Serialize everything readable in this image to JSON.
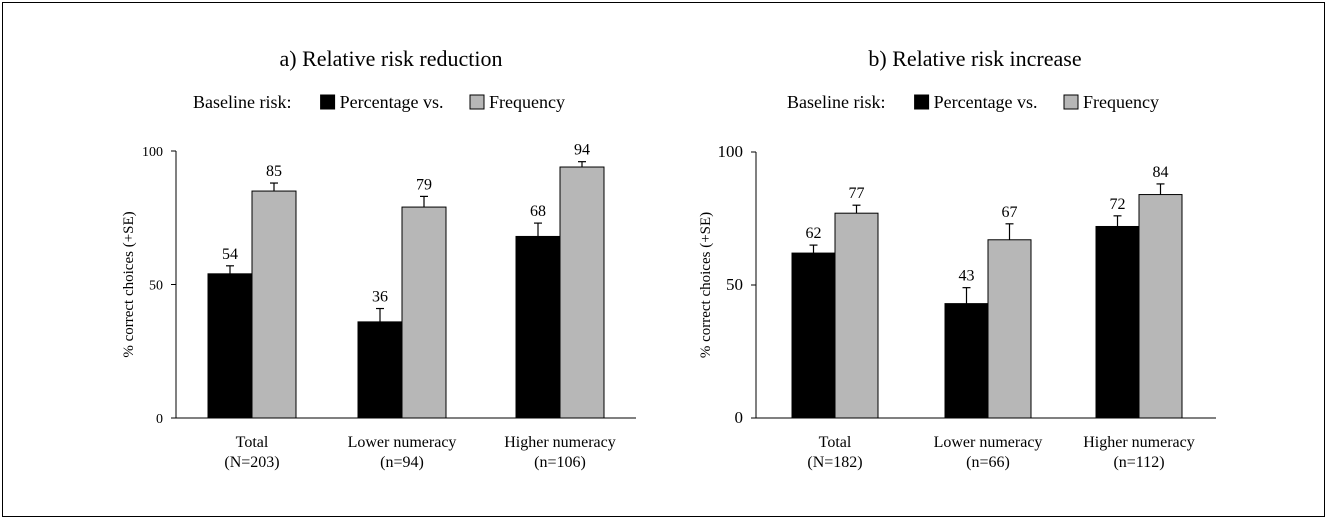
{
  "colors": {
    "percentage": "#000000",
    "frequency": "#b7b7b7",
    "axis": "#000000"
  },
  "chart_data": [
    {
      "type": "bar",
      "title": "a) Relative risk reduction",
      "legend_prefix": "Baseline risk:",
      "legend_placement": "top-center",
      "ylabel": "% correct choices (+SE)",
      "ylim": [
        0,
        100
      ],
      "yticks": [
        "0",
        "50",
        "100"
      ],
      "categories": [
        "Total",
        "Lower numeracy",
        "Higher numeracy"
      ],
      "category_sublabels": [
        "(N=203)",
        "(n=94)",
        "(n=106)"
      ],
      "series": [
        {
          "name": "Percentage vs.",
          "values": [
            54,
            36,
            68
          ],
          "se": [
            3,
            5,
            5
          ]
        },
        {
          "name": "Frequency",
          "values": [
            85,
            79,
            94
          ],
          "se": [
            3,
            4,
            2
          ]
        }
      ],
      "grid": false
    },
    {
      "type": "bar",
      "title": "b) Relative risk increase",
      "legend_prefix": "Baseline risk:",
      "legend_placement": "top-center",
      "ylabel": "% correct choices (+SE)",
      "ylim": [
        0,
        100
      ],
      "yticks": [
        "0",
        "50",
        "100"
      ],
      "categories": [
        "Total",
        "Lower numeracy",
        "Higher numeracy"
      ],
      "category_sublabels": [
        "(N=182)",
        "(n=66)",
        "(n=112)"
      ],
      "series": [
        {
          "name": "Percentage vs.",
          "values": [
            62,
            43,
            72
          ],
          "se": [
            3,
            6,
            4
          ]
        },
        {
          "name": "Frequency",
          "values": [
            77,
            67,
            84
          ],
          "se": [
            3,
            6,
            4
          ]
        }
      ],
      "grid": false
    }
  ]
}
